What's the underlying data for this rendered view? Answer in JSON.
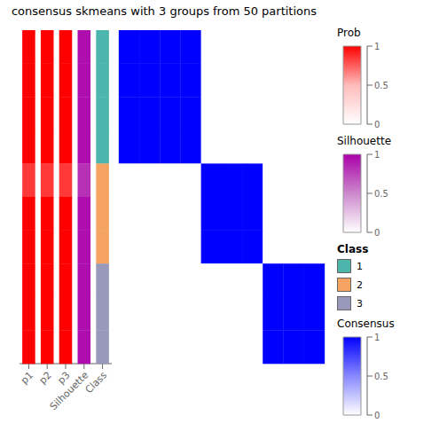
{
  "chart_data": {
    "type": "heatmap",
    "title": "consensus skmeans with 3 groups from 50 partitions",
    "cells": [
      [
        1,
        1,
        1,
        1,
        0,
        0,
        0,
        0,
        0,
        0
      ],
      [
        1,
        1,
        1,
        1,
        0,
        0,
        0,
        0,
        0,
        0
      ],
      [
        1,
        1,
        1,
        1,
        0,
        0,
        0,
        0,
        0,
        0
      ],
      [
        1,
        1,
        1,
        1,
        0,
        0,
        0,
        0,
        0,
        0
      ],
      [
        0,
        0,
        0,
        0,
        1,
        1,
        1,
        0,
        0,
        0
      ],
      [
        0,
        0,
        0,
        0,
        1,
        1,
        1,
        0,
        0,
        0
      ],
      [
        0,
        0,
        0,
        0,
        1,
        1,
        1,
        0,
        0,
        0
      ],
      [
        0,
        0,
        0,
        0,
        0,
        0,
        0,
        1,
        1,
        1
      ],
      [
        0,
        0,
        0,
        0,
        0,
        0,
        0,
        1,
        1,
        1
      ],
      [
        0,
        0,
        0,
        0,
        0,
        0,
        0,
        1,
        1,
        1
      ]
    ],
    "color_scale": "Consensus",
    "annotations": [
      {
        "name": "p1",
        "values": [
          1,
          1,
          1,
          1,
          0.85,
          1,
          1,
          1,
          1,
          1
        ],
        "color_scale": "Prob"
      },
      {
        "name": "p2",
        "values": [
          1,
          1,
          1,
          1,
          0.85,
          1,
          1,
          1,
          1,
          1
        ],
        "color_scale": "Prob"
      },
      {
        "name": "p3",
        "values": [
          1,
          1,
          1,
          1,
          0.85,
          1,
          1,
          1,
          1,
          1
        ],
        "color_scale": "Prob"
      },
      {
        "name": "Silhouette",
        "values": [
          0.95,
          0.95,
          0.95,
          0.95,
          0.82,
          0.95,
          0.95,
          0.95,
          0.95,
          0.95
        ],
        "color_scale": "Silhouette"
      },
      {
        "name": "Class",
        "classes": [
          1,
          1,
          1,
          1,
          2,
          2,
          2,
          3,
          3,
          3
        ],
        "color_scale": "Class"
      }
    ],
    "color_scales": [
      {
        "title": "Prob",
        "colors": [
          "#FFFFFF",
          "#FFBBBB",
          "#FF0000"
        ],
        "range": [
          0,
          1
        ],
        "ticks": [
          0,
          0.5,
          1
        ]
      },
      {
        "title": "Silhouette",
        "colors": [
          "#FFFFFF",
          "#CC88CC",
          "#AA00AA"
        ],
        "range": [
          0,
          1
        ],
        "ticks": [
          0,
          0.5,
          1
        ]
      },
      {
        "title": "Class",
        "labels": [
          "1",
          "2",
          "3"
        ],
        "colors": [
          "#4DB6AC",
          "#F4A460",
          "#9999BB"
        ]
      },
      {
        "title": "Consensus",
        "colors": [
          "#FFFFFF",
          "#8888FF",
          "#0000FF"
        ],
        "range": [
          0,
          1
        ],
        "ticks": [
          0,
          0.5,
          1
        ]
      }
    ]
  }
}
